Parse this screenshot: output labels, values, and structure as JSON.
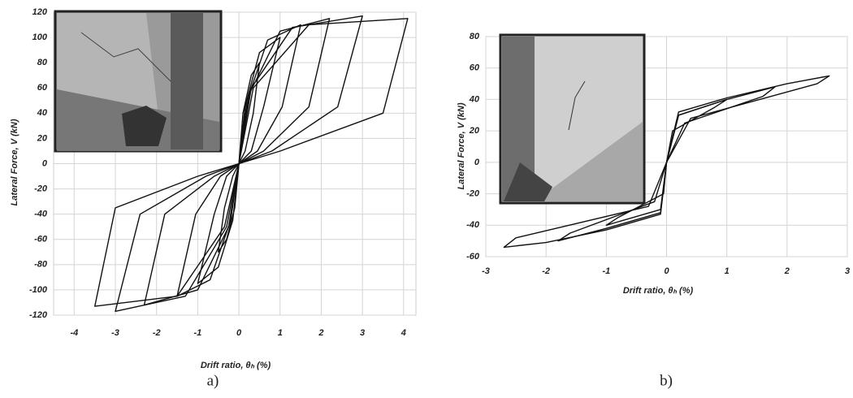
{
  "chart_data": [
    {
      "type": "line",
      "caption": "a)",
      "xlabel": "Drift ratio, θₕ (%)",
      "ylabel": "Lateral Force, V (kN)",
      "xlim": [
        -4.5,
        4.3
      ],
      "ylim": [
        -120,
        120
      ],
      "xticks": [
        -4,
        -3,
        -2,
        -1,
        0,
        1,
        2,
        3,
        4
      ],
      "yticks": [
        -120,
        -100,
        -80,
        -60,
        -40,
        -20,
        0,
        20,
        40,
        60,
        80,
        100,
        120
      ],
      "grid": true,
      "series": [
        {
          "color": "#111111",
          "x": [
            0,
            0.1,
            0.3,
            0.5,
            0.35,
            0.15,
            0,
            -0.1,
            -0.3,
            -0.5,
            -0.35,
            -0.15,
            0
          ],
          "values": [
            0,
            40,
            70,
            80,
            40,
            10,
            0,
            -35,
            -60,
            -70,
            -35,
            -10,
            0
          ]
        },
        {
          "color": "#111111",
          "x": [
            0,
            0.15,
            0.5,
            1,
            0.6,
            0.3,
            0,
            -0.15,
            -0.5,
            -1,
            -0.6,
            -0.3,
            0
          ],
          "values": [
            0,
            45,
            88,
            100,
            45,
            10,
            0,
            -45,
            -82,
            -95,
            -40,
            -10,
            0
          ]
        },
        {
          "color": "#111111",
          "x": [
            0,
            0.2,
            0.7,
            1.5,
            1.05,
            0.45,
            0,
            -0.2,
            -0.7,
            -1.5,
            -1.05,
            -0.45,
            0
          ],
          "values": [
            0,
            50,
            98,
            110,
            45,
            10,
            0,
            -45,
            -92,
            -105,
            -40,
            -10,
            0
          ]
        },
        {
          "color": "#111111",
          "x": [
            0,
            0.25,
            1.0,
            2.2,
            1.7,
            0.6,
            0,
            -0.25,
            -1.0,
            -2.3,
            -1.8,
            -0.6,
            0
          ],
          "values": [
            0,
            55,
            105,
            115,
            45,
            10,
            0,
            -50,
            -100,
            -112,
            -40,
            -10,
            0
          ]
        },
        {
          "color": "#111111",
          "x": [
            0,
            0.3,
            1.3,
            3,
            2.4,
            0.8,
            0,
            -0.3,
            -1.3,
            -3,
            -2.4,
            -0.8,
            0
          ],
          "values": [
            0,
            60,
            108,
            117,
            45,
            10,
            0,
            -50,
            -105,
            -117,
            -40,
            -10,
            0
          ]
        },
        {
          "color": "#111111",
          "x": [
            0,
            0.35,
            1.7,
            4.1,
            3.5,
            1.0,
            0,
            -0.35,
            -1.5,
            -3.5,
            -3.0,
            -1.0,
            0
          ],
          "values": [
            0,
            60,
            110,
            115,
            40,
            10,
            0,
            -50,
            -105,
            -113,
            -35,
            -10,
            0
          ]
        }
      ]
    },
    {
      "type": "line",
      "caption": "b)",
      "xlabel": "Drift ratio, θₕ (%)",
      "ylabel": "Lateral Force, V (kN)",
      "xlim": [
        -3,
        3
      ],
      "ylim": [
        -60,
        80
      ],
      "xticks": [
        -3,
        -2,
        -1,
        0,
        1,
        2,
        3
      ],
      "yticks": [
        -60,
        -40,
        -20,
        0,
        20,
        40,
        60,
        80
      ],
      "grid": true,
      "series": [
        {
          "color": "#111111",
          "x": [
            0,
            0.2,
            1,
            0.8,
            0.1,
            0,
            -0.1,
            -1,
            -0.8,
            -0.05,
            0
          ],
          "values": [
            0,
            30,
            40,
            35,
            20,
            0,
            -30,
            -40,
            -35,
            -20,
            0
          ]
        },
        {
          "color": "#111111",
          "x": [
            0,
            0.2,
            1,
            1.8,
            1.6,
            0.3,
            0,
            -0.1,
            -1,
            -1.8,
            -1.6,
            -0.2,
            0
          ],
          "values": [
            0,
            30,
            40,
            48,
            42,
            25,
            0,
            -32,
            -42,
            -50,
            -45,
            -25,
            0
          ]
        },
        {
          "color": "#111111",
          "x": [
            0,
            0.2,
            1,
            2,
            2.7,
            2.5,
            0.4,
            0,
            -0.1,
            -1,
            -2,
            -2.7,
            -2.5,
            -0.3,
            0
          ],
          "values": [
            0,
            32,
            41,
            50,
            55,
            50,
            28,
            0,
            -33,
            -43,
            -51,
            -54,
            -48,
            -28,
            0
          ]
        }
      ]
    }
  ]
}
